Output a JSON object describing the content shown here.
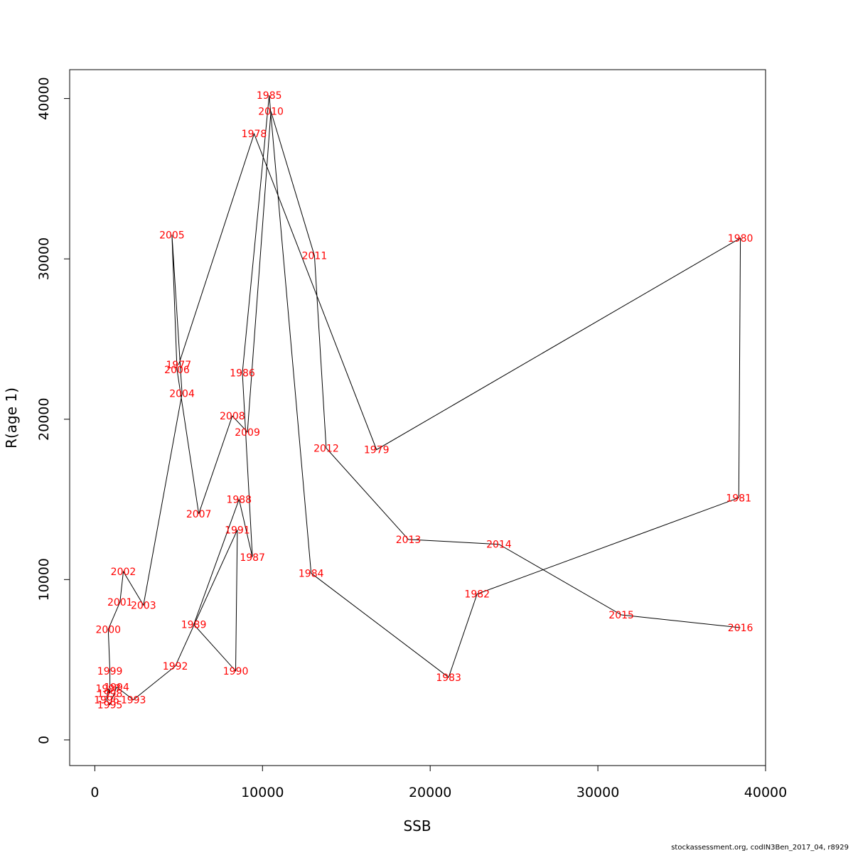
{
  "chart_data": {
    "type": "line",
    "xlabel": "SSB",
    "ylabel": "R(age 1)",
    "xlim": [
      -1500,
      40000
    ],
    "ylim": [
      -1600,
      41800
    ],
    "x_ticks": [
      0,
      10000,
      20000,
      30000,
      40000
    ],
    "y_ticks": [
      0,
      10000,
      20000,
      30000,
      40000
    ],
    "grid": false,
    "line_color": "#000000",
    "label_color": "#ff0000",
    "footer": "stockassessment.org, codIN3Ben_2017_04, r8929",
    "points": [
      {
        "year": "1977",
        "ssb": 5000,
        "r": 23400
      },
      {
        "year": "1978",
        "ssb": 9500,
        "r": 37800
      },
      {
        "year": "1979",
        "ssb": 16800,
        "r": 18100
      },
      {
        "year": "1980",
        "ssb": 38500,
        "r": 31300
      },
      {
        "year": "1981",
        "ssb": 38400,
        "r": 15100
      },
      {
        "year": "1982",
        "ssb": 22800,
        "r": 9100
      },
      {
        "year": "1983",
        "ssb": 21100,
        "r": 3900
      },
      {
        "year": "1984",
        "ssb": 12900,
        "r": 10400
      },
      {
        "year": "1985",
        "ssb": 10400,
        "r": 40200
      },
      {
        "year": "1986",
        "ssb": 8800,
        "r": 22900
      },
      {
        "year": "1987",
        "ssb": 9400,
        "r": 11400
      },
      {
        "year": "1988",
        "ssb": 8600,
        "r": 15000
      },
      {
        "year": "1989",
        "ssb": 5900,
        "r": 7200
      },
      {
        "year": "1990",
        "ssb": 8400,
        "r": 4300
      },
      {
        "year": "1991",
        "ssb": 8500,
        "r": 13100
      },
      {
        "year": "1992",
        "ssb": 4800,
        "r": 4600
      },
      {
        "year": "1993",
        "ssb": 2300,
        "r": 2500
      },
      {
        "year": "1994",
        "ssb": 1300,
        "r": 3300
      },
      {
        "year": "1995",
        "ssb": 900,
        "r": 2200
      },
      {
        "year": "1996",
        "ssb": 700,
        "r": 2500
      },
      {
        "year": "1997",
        "ssb": 800,
        "r": 3200
      },
      {
        "year": "1998",
        "ssb": 900,
        "r": 2900
      },
      {
        "year": "1999",
        "ssb": 900,
        "r": 4300
      },
      {
        "year": "2000",
        "ssb": 800,
        "r": 6900
      },
      {
        "year": "2001",
        "ssb": 1500,
        "r": 8600
      },
      {
        "year": "2002",
        "ssb": 1700,
        "r": 10500
      },
      {
        "year": "2003",
        "ssb": 2900,
        "r": 8400
      },
      {
        "year": "2004",
        "ssb": 5200,
        "r": 21600
      },
      {
        "year": "2005",
        "ssb": 4600,
        "r": 31500
      },
      {
        "year": "2006",
        "ssb": 4900,
        "r": 23100
      },
      {
        "year": "2007",
        "ssb": 6200,
        "r": 14100
      },
      {
        "year": "2008",
        "ssb": 8200,
        "r": 20200
      },
      {
        "year": "2009",
        "ssb": 9100,
        "r": 19200
      },
      {
        "year": "2010",
        "ssb": 10500,
        "r": 39200
      },
      {
        "year": "2011",
        "ssb": 13100,
        "r": 30200
      },
      {
        "year": "2012",
        "ssb": 13800,
        "r": 18200
      },
      {
        "year": "2013",
        "ssb": 18700,
        "r": 12500
      },
      {
        "year": "2014",
        "ssb": 24100,
        "r": 12200
      },
      {
        "year": "2015",
        "ssb": 31400,
        "r": 7800
      },
      {
        "year": "2016",
        "ssb": 38500,
        "r": 7000
      }
    ]
  }
}
